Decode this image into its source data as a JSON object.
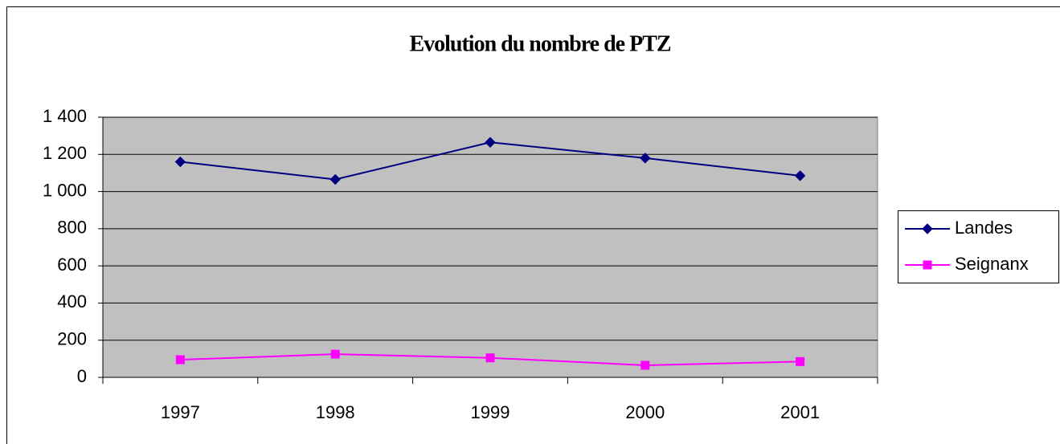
{
  "chart_data": {
    "type": "line",
    "title": "Evolution du nombre de PTZ",
    "categories": [
      "1997",
      "1998",
      "1999",
      "2000",
      "2001"
    ],
    "series": [
      {
        "name": "Landes",
        "color": "#000080",
        "marker": "diamond",
        "values": [
          1160,
          1065,
          1265,
          1180,
          1085
        ]
      },
      {
        "name": "Seignanx",
        "color": "#ff00ff",
        "marker": "square",
        "values": [
          95,
          125,
          105,
          65,
          85
        ]
      }
    ],
    "ylim": [
      0,
      1400
    ],
    "yticks": [
      0,
      200,
      400,
      600,
      800,
      {
        "value": 1000,
        "label": "1 000"
      },
      {
        "value": 1200,
        "label": "1 200"
      },
      {
        "value": 1400,
        "label": "1 400"
      }
    ],
    "grid": true,
    "legend": "right"
  }
}
